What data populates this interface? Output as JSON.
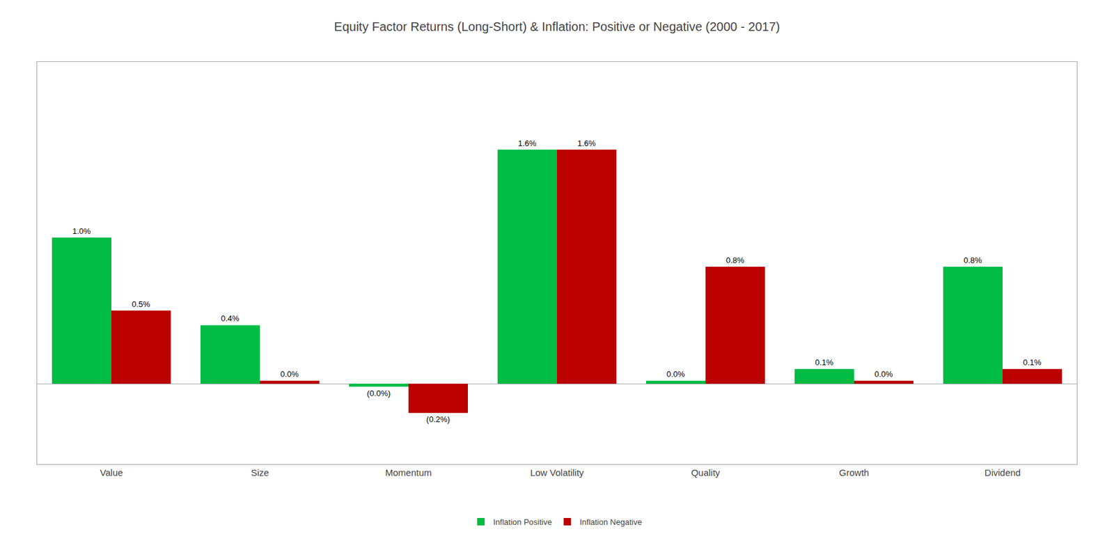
{
  "chart_data": {
    "type": "bar",
    "title": "Equity Factor Returns (Long-Short) & Inflation: Positive or Negative (2000 - 2017)",
    "categories": [
      "Value",
      "Size",
      "Momentum",
      "Low Volatility",
      "Quality",
      "Growth",
      "Dividend"
    ],
    "series": [
      {
        "name": "Inflation Positive",
        "color": "#00BB44",
        "values": [
          1.0,
          0.4,
          -0.02,
          1.6,
          0.02,
          0.1,
          0.8
        ],
        "value_labels": [
          "1.0%",
          "0.4%",
          "(0.0%)",
          "1.6%",
          "0.0%",
          "0.1%",
          "0.8%"
        ]
      },
      {
        "name": "Inflation Negative",
        "color": "#BB0000",
        "values": [
          0.5,
          0.02,
          -0.2,
          1.6,
          0.8,
          0.02,
          0.1
        ],
        "value_labels": [
          "0.5%",
          "0.0%",
          "(0.2%)",
          "1.6%",
          "0.8%",
          "0.0%",
          "0.1%"
        ]
      }
    ],
    "ylim": [
      -0.55,
      2.2
    ],
    "grid": false,
    "legend": "bottom",
    "data_labels": true,
    "tick_labels": "x"
  }
}
